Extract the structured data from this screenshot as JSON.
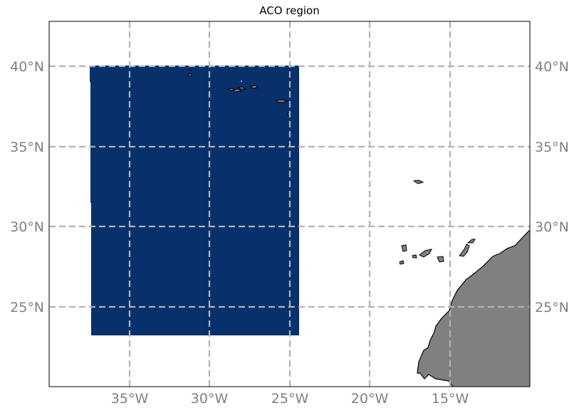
{
  "map": {
    "title": "ACO region",
    "lon_labels": [
      "35°W",
      "30°W",
      "25°W",
      "20°W",
      "15°W"
    ],
    "lat_labels": [
      "40°N",
      "35°N",
      "30°N",
      "25°N"
    ],
    "colors": {
      "region_fill": "#08306b",
      "land_fill": "#808080",
      "coast_stroke": "#000000",
      "grid": "#b3b3b3",
      "tick_label": "#808080"
    }
  }
}
